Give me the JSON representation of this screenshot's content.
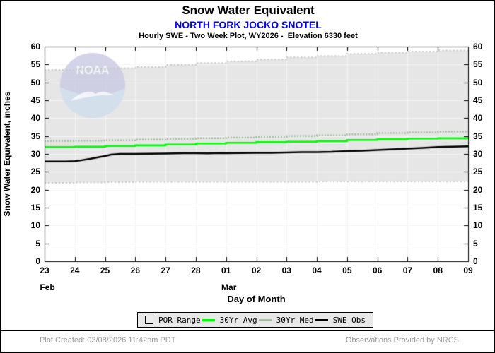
{
  "header": {
    "title": "Snow Water Equivalent",
    "station": "NORTH FORK JOCKO SNOTEL",
    "subtitle": "Hourly SWE - Two Week Plot, WY2026 -  Elevation 6330 feet"
  },
  "colors": {
    "station_title": "#0000ee",
    "band_fill": "#e6e6e6",
    "band_edge": "#c4c9c4",
    "avg_line": "#00ff00",
    "med_line": "#a4bfa4",
    "obs_line": "#000000",
    "grid_under": "#e7e7e7",
    "grid_over": "rgba(255,255,255,0.55)",
    "footer_text": "#999999",
    "logo_dark": "#c9c9e2",
    "logo_light": "#d3e4ec"
  },
  "watermark": {
    "name": "noaa-logo",
    "text": "NOAA"
  },
  "chart_data": {
    "type": "area",
    "title": "Snow Water Equivalent",
    "xlabel": "Day of Month",
    "ylabel": "Snow Water Equivalent, inches",
    "ylim": [
      0,
      60
    ],
    "y_tick_labels": [
      0,
      5,
      10,
      15,
      20,
      25,
      30,
      35,
      40,
      45,
      50,
      55,
      60
    ],
    "x_tick_labels": [
      "23",
      "24",
      "25",
      "26",
      "27",
      "28",
      "01",
      "02",
      "03",
      "04",
      "05",
      "06",
      "07",
      "08",
      "09"
    ],
    "month_labels": [
      {
        "label": "Feb",
        "day_index": 0
      },
      {
        "label": "Mar",
        "day_index": 6
      }
    ],
    "grid": true,
    "legend_position": "bottom",
    "series": [
      {
        "name": "POR Range",
        "type": "band",
        "style": "step",
        "upper": [
          53.5,
          53.7,
          54.0,
          54.3,
          54.9,
          55.4,
          55.9,
          56.4,
          57.0,
          57.4,
          58.0,
          58.3,
          58.6,
          58.9,
          59.0
        ],
        "lower": [
          21.9,
          22.0,
          22.1,
          22.2,
          22.2,
          22.2,
          22.2,
          22.2,
          22.2,
          22.3,
          22.3,
          22.3,
          22.3,
          22.3,
          22.3
        ]
      },
      {
        "name": "30Yr Avg",
        "type": "line",
        "style": "step",
        "values": [
          31.9,
          32.0,
          32.2,
          32.4,
          32.6,
          32.9,
          33.1,
          33.3,
          33.4,
          33.6,
          33.9,
          34.1,
          34.3,
          34.4,
          34.6
        ]
      },
      {
        "name": "30Yr Med",
        "type": "line",
        "style": "step-dotted",
        "values": [
          33.6,
          33.7,
          33.8,
          34.0,
          34.2,
          34.4,
          34.6,
          34.8,
          35.0,
          35.2,
          35.5,
          35.8,
          36.0,
          36.2,
          36.4
        ]
      },
      {
        "name": "SWE Obs",
        "type": "line",
        "style": "solid",
        "points": [
          [
            0,
            27.9
          ],
          [
            0.7,
            27.9
          ],
          [
            1,
            28.0
          ],
          [
            1.2,
            28.2
          ],
          [
            1.5,
            28.6
          ],
          [
            1.8,
            29.1
          ],
          [
            2,
            29.4
          ],
          [
            2.2,
            29.8
          ],
          [
            2.5,
            30.0
          ],
          [
            3,
            30.0
          ],
          [
            4,
            30.1
          ],
          [
            4.6,
            30.2
          ],
          [
            5,
            30.2
          ],
          [
            5.4,
            30.15
          ],
          [
            5.8,
            30.25
          ],
          [
            6,
            30.2
          ],
          [
            6.5,
            30.25
          ],
          [
            7,
            30.3
          ],
          [
            7.5,
            30.3
          ],
          [
            8,
            30.4
          ],
          [
            8.5,
            30.5
          ],
          [
            9,
            30.5
          ],
          [
            9.5,
            30.6
          ],
          [
            10,
            30.8
          ],
          [
            10.5,
            30.9
          ],
          [
            11,
            31.1
          ],
          [
            11.5,
            31.3
          ],
          [
            12,
            31.5
          ],
          [
            12.5,
            31.7
          ],
          [
            13,
            31.9
          ],
          [
            13.5,
            32.0
          ],
          [
            14,
            32.1
          ]
        ]
      }
    ]
  },
  "legend": {
    "items": [
      {
        "label": "POR Range",
        "swatch": "box"
      },
      {
        "label": "30Yr Avg",
        "swatch": "line",
        "color": "#00ff00"
      },
      {
        "label": "30Yr Med",
        "swatch": "line",
        "color": "#a4bfa4"
      },
      {
        "label": "SWE Obs",
        "swatch": "line",
        "color": "#000000"
      }
    ]
  },
  "footer": {
    "left": "Plot Created: 03/08/2026 11:42pm PDT",
    "right": "Observations Provided by NRCS"
  }
}
